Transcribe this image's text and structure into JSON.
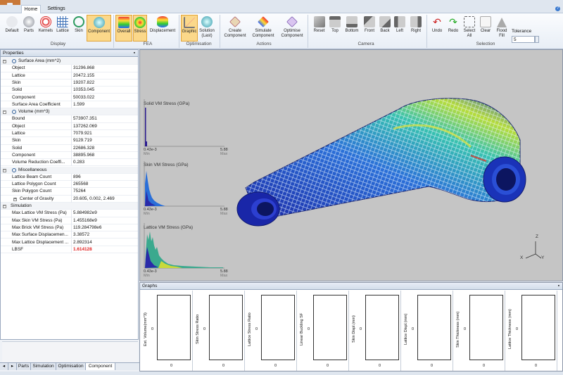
{
  "app": {
    "tabs": [
      "Home",
      "Settings"
    ]
  },
  "ribbon": {
    "display": {
      "label": "Display",
      "buttons": [
        "Default",
        "Parts",
        "Kernels",
        "Lattice",
        "Skin",
        "Component"
      ]
    },
    "fea": {
      "label": "FEA",
      "buttons": [
        "Overall",
        "Stress",
        "Displacement"
      ]
    },
    "optimisation": {
      "label": "Optimisation",
      "buttons": [
        "Graphic",
        "Solution (Last)"
      ]
    },
    "actions": {
      "label": "Actions",
      "buttons": [
        "Create Component",
        "Simulate Component",
        "Optimise Component"
      ]
    },
    "camera": {
      "label": "Camera",
      "buttons": [
        "Reset",
        "Top",
        "Bottom",
        "Front",
        "Back",
        "Left",
        "Right"
      ]
    },
    "selection": {
      "label": "Selection",
      "buttons": [
        "Undo",
        "Redo",
        "Select All",
        "Clear",
        "Flood Fill"
      ]
    },
    "tolerance": {
      "label": "Tolerance",
      "value": "5"
    }
  },
  "properties": {
    "title": "Properties",
    "rows": [
      {
        "type": "cat",
        "k": "Surface Area (mm^2)"
      },
      {
        "k": "Object",
        "v": "31296.868"
      },
      {
        "k": "Lattice",
        "v": "20472.155"
      },
      {
        "k": "Skin",
        "v": "19207.822"
      },
      {
        "k": "Solid",
        "v": "10353.045"
      },
      {
        "k": "Component",
        "v": "50033.022"
      },
      {
        "k": "Surface Area Coefficient",
        "v": "1.599"
      },
      {
        "type": "cat",
        "k": "Volume (mm^3)"
      },
      {
        "k": "Bound",
        "v": "573907.351"
      },
      {
        "k": "Object",
        "v": "137262.069"
      },
      {
        "k": "Lattice",
        "v": "7079.921"
      },
      {
        "k": "Skin",
        "v": "9129.719"
      },
      {
        "k": "Solid",
        "v": "22686.328"
      },
      {
        "k": "Component",
        "v": "38895.968"
      },
      {
        "k": "Volume Reduction Coeffi...",
        "v": "0.283"
      },
      {
        "type": "cat",
        "k": "Miscellaneous"
      },
      {
        "k": "Lattice Beam Count",
        "v": "896"
      },
      {
        "k": "Lattice Polygon Count",
        "v": "265568"
      },
      {
        "k": "Skin Polygon Count",
        "v": "75264"
      },
      {
        "k": "Center of Gravity",
        "v": "20.605, 0.002, 2.469",
        "sub": true
      },
      {
        "type": "cat2",
        "k": "Simulation"
      },
      {
        "k": "Max Lattice VM Stress (Pa)",
        "v": "5.884982e9"
      },
      {
        "k": "Max Skin VM Stress (Pa)",
        "v": "1.455168e9"
      },
      {
        "k": "Max Brick VM Stress (Pa)",
        "v": "119.284798e6"
      },
      {
        "k": "Max Surface Displacemen...",
        "v": "3.38572"
      },
      {
        "k": "Max Lattice Displacement ...",
        "v": "2.892314"
      },
      {
        "k": "LBSF",
        "v": "1.614128",
        "red": true
      }
    ]
  },
  "bottom_tabs": [
    "Parts",
    "Simulation",
    "Optimisation",
    "Component"
  ],
  "viewport": {
    "hist1": {
      "label": "Solid VM Stress (GPa)",
      "min": "0.43e-3",
      "max": "5.88",
      "minlbl": "Min",
      "maxlbl": "Max"
    },
    "hist2": {
      "label": "Skin VM Stress (GPa)",
      "min": "0.43e-3",
      "max": "5.88",
      "minlbl": "Min",
      "maxlbl": "Max"
    },
    "hist3": {
      "label": "Lattice VM Stress (GPa)",
      "min": "0.43e-3",
      "max": "5.88",
      "minlbl": "Min",
      "maxlbl": "Max"
    },
    "axes": {
      "z": "Z",
      "x": "X",
      "y": "Y"
    }
  },
  "graphs": {
    "title": "Graphs",
    "cells": [
      {
        "ylabel": "Est. Volume(mm^3)",
        "y0": "0",
        "x0": "0"
      },
      {
        "ylabel": "Skin Stress Ratio",
        "y0": "0",
        "x0": "0"
      },
      {
        "ylabel": "Lattice Stress Ratio",
        "y0": "0",
        "x0": "0"
      },
      {
        "ylabel": "Linear Buckling SF",
        "y0": "0",
        "x0": "0"
      },
      {
        "ylabel": "Skin Displ.(mm)",
        "y0": "0",
        "x0": "0"
      },
      {
        "ylabel": "Lattice Displ.(mm)",
        "y0": "0",
        "x0": "0"
      },
      {
        "ylabel": "Skin Thickness (mm)",
        "y0": "0",
        "x0": "0"
      },
      {
        "ylabel": "Lattice Thickness (mm)",
        "y0": "0",
        "x0": "0"
      }
    ]
  },
  "colors": {
    "accent": "#fbd88a",
    "red": "#e02020",
    "viewport": "#c5c5c5"
  }
}
